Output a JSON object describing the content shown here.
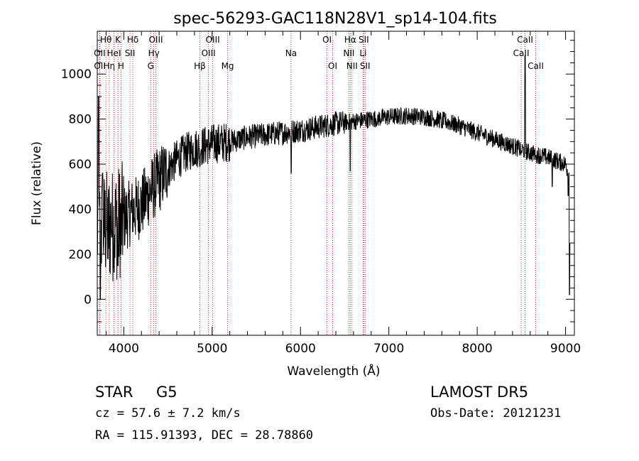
{
  "chart_data": {
    "type": "line",
    "title": "spec-56293-GAC118N28V1_sp14-104.fits",
    "xlabel": "Wavelength (Å)",
    "ylabel": "Flux (relative)",
    "xlim": [
      3700,
      9100
    ],
    "ylim": [
      -160,
      1190
    ],
    "xticks": [
      4000,
      5000,
      6000,
      7000,
      8000,
      9000
    ],
    "yticks": [
      0,
      200,
      400,
      600,
      800,
      1000
    ],
    "grid": false,
    "series": [
      {
        "continuum": [
          [
            3700,
            300
          ],
          [
            3800,
            320
          ],
          [
            3900,
            330
          ],
          [
            4000,
            360
          ],
          [
            4100,
            390
          ],
          [
            4200,
            420
          ],
          [
            4300,
            480
          ],
          [
            4400,
            530
          ],
          [
            4500,
            580
          ],
          [
            4600,
            620
          ],
          [
            4700,
            650
          ],
          [
            4800,
            670
          ],
          [
            4900,
            680
          ],
          [
            5000,
            690
          ],
          [
            5200,
            700
          ],
          [
            5400,
            720
          ],
          [
            5600,
            730
          ],
          [
            5800,
            740
          ],
          [
            6000,
            750
          ],
          [
            6200,
            765
          ],
          [
            6400,
            780
          ],
          [
            6600,
            790
          ],
          [
            6800,
            800
          ],
          [
            7000,
            810
          ],
          [
            7200,
            815
          ],
          [
            7400,
            810
          ],
          [
            7600,
            795
          ],
          [
            7800,
            770
          ],
          [
            8000,
            740
          ],
          [
            8200,
            710
          ],
          [
            8400,
            680
          ],
          [
            8600,
            650
          ],
          [
            8800,
            630
          ],
          [
            9000,
            600
          ],
          [
            9050,
            540
          ]
        ],
        "features": [
          [
            3715,
            900
          ],
          [
            3735,
            0
          ],
          [
            3760,
            560
          ],
          [
            3820,
            180
          ],
          [
            3860,
            300
          ],
          [
            3890,
            120
          ],
          [
            3934,
            150
          ],
          [
            3968,
            200
          ],
          [
            4102,
            300
          ],
          [
            4340,
            450
          ],
          [
            4861,
            590
          ],
          [
            5175,
            650
          ],
          [
            5270,
            700
          ],
          [
            5895,
            560
          ],
          [
            6563,
            570
          ],
          [
            6870,
            780
          ],
          [
            7600,
            760
          ],
          [
            8498,
            650
          ],
          [
            8542,
            1080
          ],
          [
            8662,
            640
          ],
          [
            8850,
            500
          ],
          [
            9030,
            460
          ],
          [
            9045,
            20
          ],
          [
            9050,
            250
          ]
        ]
      }
    ],
    "lines": [
      {
        "label": "Hθ",
        "wl": 3798,
        "row": 0
      },
      {
        "label": "OII",
        "wl": 3727,
        "row": 1
      },
      {
        "label": "OII",
        "wl": 3729,
        "row": 2
      },
      {
        "label": "Hη",
        "wl": 3835,
        "row": 2
      },
      {
        "label": "K",
        "wl": 3934,
        "row": 0
      },
      {
        "label": "HeI",
        "wl": 3889,
        "row": 1
      },
      {
        "label": "H",
        "wl": 3968,
        "row": 2
      },
      {
        "label": "Hδ",
        "wl": 4102,
        "row": 0
      },
      {
        "label": "SII",
        "wl": 4070,
        "row": 1
      },
      {
        "label": "Hγ",
        "wl": 4340,
        "row": 1
      },
      {
        "label": "G",
        "wl": 4305,
        "row": 2
      },
      {
        "label": "OIII",
        "wl": 4363,
        "row": 0
      },
      {
        "label": "Hβ",
        "wl": 4861,
        "row": 2
      },
      {
        "label": "OIII",
        "wl": 4959,
        "row": 1
      },
      {
        "label": "OIII",
        "wl": 5007,
        "row": 0
      },
      {
        "label": "Mg",
        "wl": 5175,
        "row": 2
      },
      {
        "label": "Na",
        "wl": 5893,
        "row": 1
      },
      {
        "label": "OI",
        "wl": 6300,
        "row": 0
      },
      {
        "label": "OI",
        "wl": 6364,
        "row": 2
      },
      {
        "label": "Hα",
        "wl": 6563,
        "row": 0
      },
      {
        "label": "NII",
        "wl": 6548,
        "row": 1
      },
      {
        "label": "NII",
        "wl": 6583,
        "row": 2
      },
      {
        "label": "SII",
        "wl": 6716,
        "row": 0
      },
      {
        "label": "Li",
        "wl": 6708,
        "row": 1
      },
      {
        "label": "SII",
        "wl": 6731,
        "row": 2
      },
      {
        "label": "CaII",
        "wl": 8542,
        "row": 0
      },
      {
        "label": "CaII",
        "wl": 8498,
        "row": 1
      },
      {
        "label": "CaII",
        "wl": 8662,
        "row": 2
      }
    ]
  },
  "info": {
    "object_type": "STAR",
    "subclass": "G5",
    "survey": "LAMOST DR5",
    "cz": "cz = 57.6 ± 7.2 km/s",
    "obs_date": "Obs-Date: 20121231",
    "radec": "RA = 115.91393, DEC =  28.78860"
  },
  "colors": {
    "line_marker": "#cc0000",
    "spectrum": "#000000",
    "axes": "#000000"
  }
}
